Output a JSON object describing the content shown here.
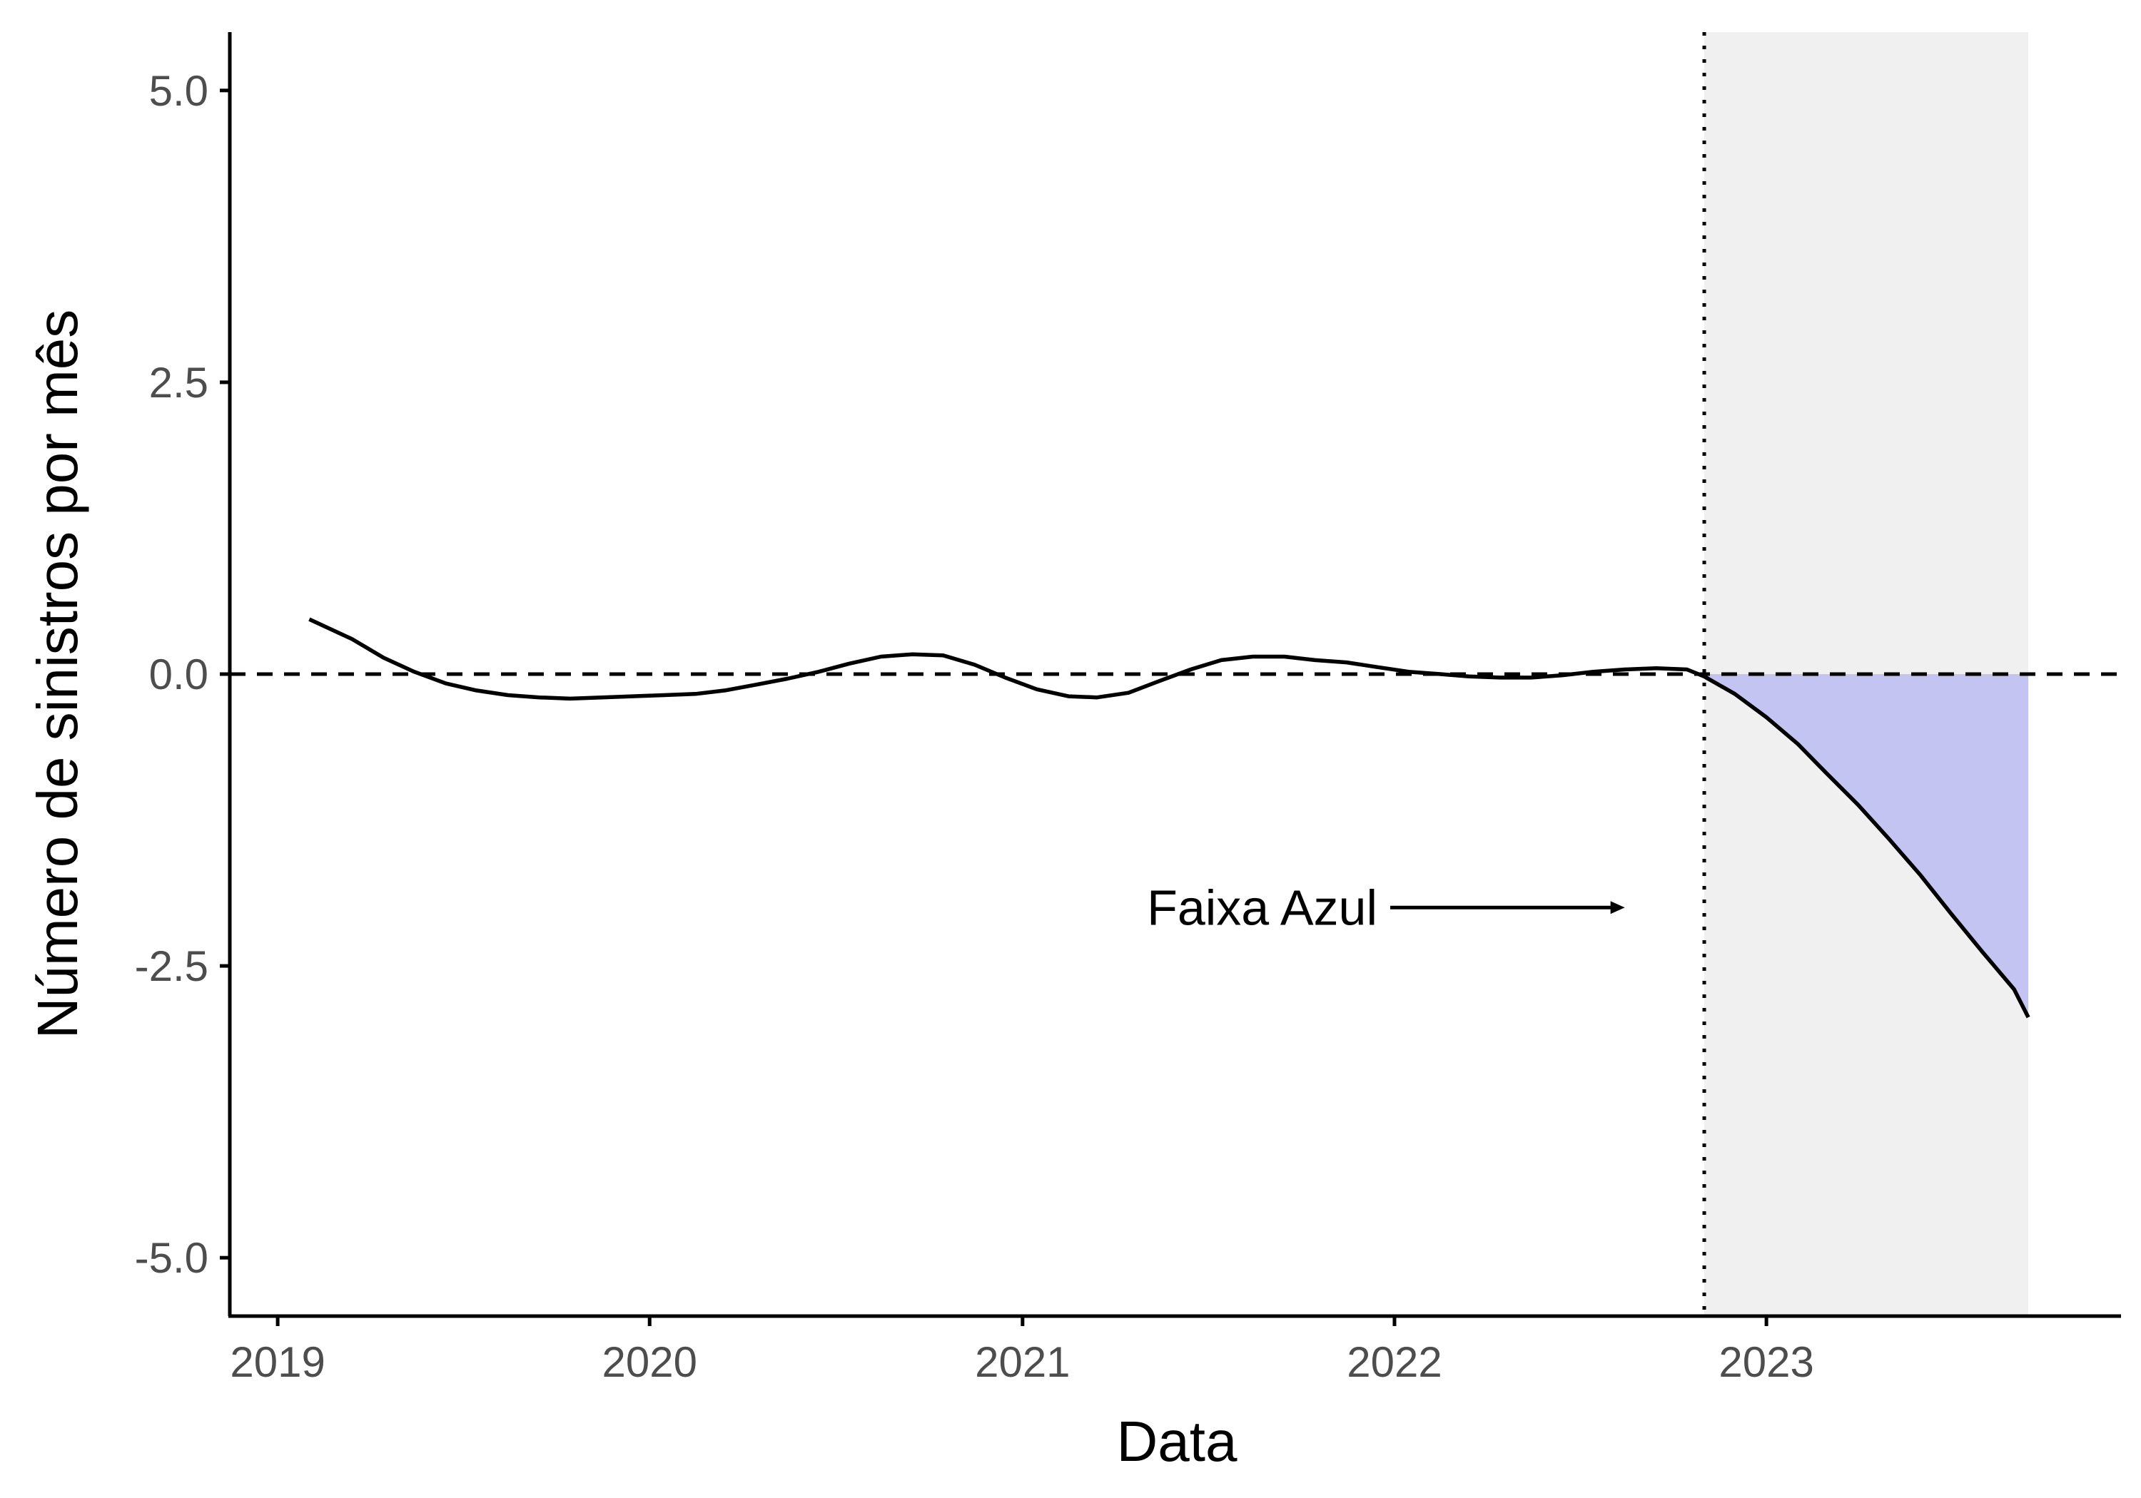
{
  "chart_data": {
    "type": "line",
    "xlabel": "Data",
    "ylabel": "Número de sinistros por mês",
    "xlim": [
      "2018-11-15",
      "2023-12-15"
    ],
    "ylim": [
      -5.5,
      5.5
    ],
    "x_ticks": [
      "2019",
      "2020",
      "2021",
      "2022",
      "2023"
    ],
    "y_ticks": [
      "5.0",
      "2.5",
      "0.0",
      "-2.5",
      "-5.0"
    ],
    "grid": false,
    "legend": "none",
    "reference_lines": [
      {
        "axis": "y",
        "value": 0,
        "style": "dashed"
      },
      {
        "axis": "x",
        "value": "2022-11-01",
        "style": "dotted"
      }
    ],
    "shaded_region": {
      "x_start": "2022-11-01",
      "x_end": "2023-09-15",
      "color": "#f0f0f0"
    },
    "fill_between_zero": {
      "x_start": "2022-11-01",
      "x_end": "2023-09-15",
      "color": "#c4c4f2"
    },
    "annotation": {
      "text": "Faixa Azul",
      "arrow_to": {
        "x": "2022-08-15",
        "y": -2.0
      }
    },
    "series": [
      {
        "x": [
          "2019-02-01",
          "2019-03-15",
          "2019-04-15",
          "2019-05-15",
          "2019-06-15",
          "2019-07-15",
          "2019-08-15",
          "2019-09-15",
          "2019-10-15",
          "2019-11-15",
          "2019-12-15",
          "2020-01-15",
          "2020-02-15",
          "2020-03-15",
          "2020-04-15",
          "2020-05-15",
          "2020-06-15",
          "2020-07-15",
          "2020-08-15",
          "2020-09-15",
          "2020-10-15",
          "2020-11-15",
          "2020-12-15",
          "2021-01-15",
          "2021-02-15",
          "2021-03-15",
          "2021-04-15",
          "2021-05-15",
          "2021-06-15",
          "2021-07-15",
          "2021-08-15",
          "2021-09-15",
          "2021-10-15",
          "2021-11-15",
          "2021-12-15",
          "2022-01-15",
          "2022-02-15",
          "2022-03-15",
          "2022-04-15",
          "2022-05-15",
          "2022-06-15",
          "2022-07-15",
          "2022-08-15",
          "2022-09-15",
          "2022-10-15",
          "2022-11-01",
          "2022-12-01",
          "2023-01-01",
          "2023-02-01",
          "2023-03-01",
          "2023-04-01",
          "2023-05-01",
          "2023-06-01",
          "2023-07-01",
          "2023-08-01",
          "2023-09-01",
          "2023-09-15"
        ],
        "y": [
          0.47,
          0.3,
          0.14,
          0.02,
          -0.08,
          -0.14,
          -0.18,
          -0.2,
          -0.21,
          -0.2,
          -0.19,
          -0.18,
          -0.17,
          -0.14,
          -0.09,
          -0.04,
          0.02,
          0.09,
          0.15,
          0.17,
          0.16,
          0.08,
          -0.03,
          -0.13,
          -0.19,
          -0.2,
          -0.16,
          -0.06,
          0.04,
          0.12,
          0.15,
          0.15,
          0.12,
          0.1,
          0.06,
          0.02,
          0.0,
          -0.02,
          -0.03,
          -0.03,
          -0.01,
          0.02,
          0.04,
          0.05,
          0.04,
          -0.02,
          -0.17,
          -0.37,
          -0.6,
          -0.85,
          -1.12,
          -1.41,
          -1.72,
          -2.05,
          -2.38,
          -2.7,
          -2.94
        ]
      }
    ]
  }
}
